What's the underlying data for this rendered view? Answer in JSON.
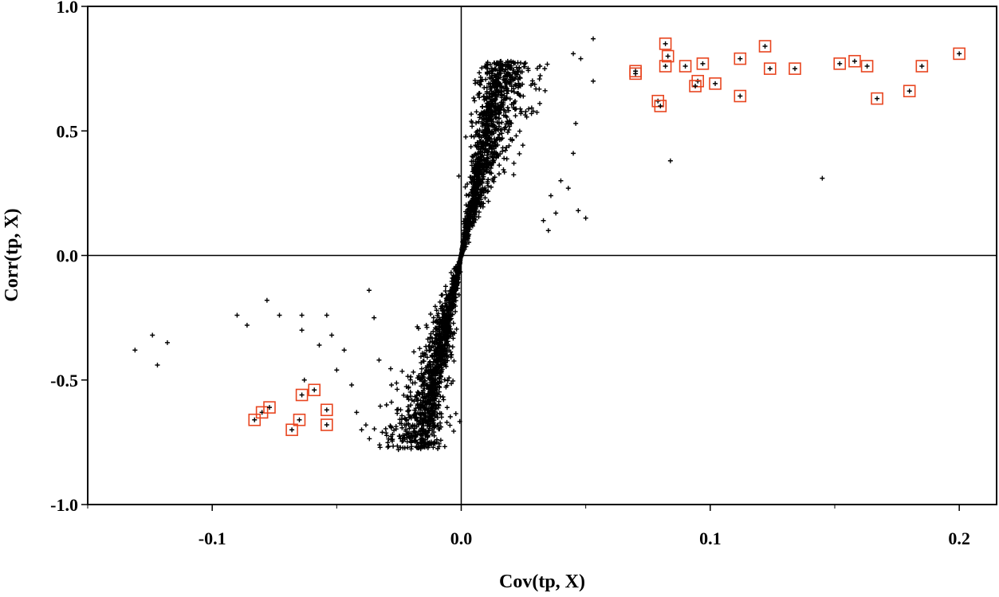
{
  "chart_data": {
    "type": "scatter",
    "title": "",
    "xlabel": "Cov(tp, X)",
    "ylabel": "Corr(tp, X)",
    "xlim": [
      -0.15,
      0.215
    ],
    "ylim": [
      -1.0,
      1.0
    ],
    "x_ticks": [
      -0.1,
      0.0,
      0.1,
      0.2
    ],
    "x_tick_labels": [
      "-0.1",
      "0.0",
      "0.1",
      "0.2"
    ],
    "y_ticks": [
      -1.0,
      -0.5,
      0.0,
      0.5,
      1.0
    ],
    "y_tick_labels": [
      "-1.0",
      "-0.5",
      "0.0",
      "0.5",
      "1.0"
    ],
    "grid": false,
    "reference_lines": {
      "x": 0.0,
      "y": 0.0
    },
    "colors": {
      "points": "#000000",
      "highlight_box": "#e8451f",
      "axes": "#000000"
    },
    "point_marker": "plus",
    "highlighted_points": [
      [
        0.07,
        0.74
      ],
      [
        0.07,
        0.73
      ],
      [
        0.082,
        0.85
      ],
      [
        0.083,
        0.8
      ],
      [
        0.082,
        0.76
      ],
      [
        0.079,
        0.62
      ],
      [
        0.08,
        0.6
      ],
      [
        0.09,
        0.76
      ],
      [
        0.097,
        0.77
      ],
      [
        0.095,
        0.7
      ],
      [
        0.094,
        0.68
      ],
      [
        0.102,
        0.69
      ],
      [
        0.112,
        0.79
      ],
      [
        0.112,
        0.64
      ],
      [
        0.122,
        0.84
      ],
      [
        0.124,
        0.75
      ],
      [
        0.134,
        0.75
      ],
      [
        0.152,
        0.77
      ],
      [
        0.158,
        0.78
      ],
      [
        0.163,
        0.76
      ],
      [
        0.167,
        0.63
      ],
      [
        0.18,
        0.66
      ],
      [
        0.185,
        0.76
      ],
      [
        0.2,
        0.81
      ],
      [
        -0.083,
        -0.66
      ],
      [
        -0.08,
        -0.63
      ],
      [
        -0.077,
        -0.61
      ],
      [
        -0.068,
        -0.7
      ],
      [
        -0.065,
        -0.66
      ],
      [
        -0.064,
        -0.56
      ],
      [
        -0.059,
        -0.54
      ],
      [
        -0.054,
        -0.62
      ],
      [
        -0.054,
        -0.68
      ]
    ],
    "outlier_points": [
      [
        -0.131,
        -0.38
      ],
      [
        -0.124,
        -0.32
      ],
      [
        -0.122,
        -0.44
      ],
      [
        -0.118,
        -0.35
      ],
      [
        -0.09,
        -0.24
      ],
      [
        -0.086,
        -0.28
      ],
      [
        -0.078,
        -0.18
      ],
      [
        -0.073,
        -0.24
      ],
      [
        -0.064,
        -0.24
      ],
      [
        -0.064,
        -0.3
      ],
      [
        -0.063,
        -0.5
      ],
      [
        -0.057,
        -0.36
      ],
      [
        -0.054,
        -0.24
      ],
      [
        -0.052,
        -0.32
      ],
      [
        -0.05,
        -0.46
      ],
      [
        -0.047,
        -0.38
      ],
      [
        -0.044,
        -0.52
      ],
      [
        -0.042,
        -0.63
      ],
      [
        -0.04,
        -0.7
      ],
      [
        -0.037,
        -0.14
      ],
      [
        -0.035,
        -0.25
      ],
      [
        -0.033,
        -0.42
      ],
      [
        -0.03,
        -0.6
      ],
      [
        -0.028,
        -0.52
      ],
      [
        0.084,
        0.38
      ],
      [
        0.145,
        0.31
      ],
      [
        0.053,
        0.87
      ],
      [
        0.053,
        0.7
      ],
      [
        0.045,
        0.81
      ],
      [
        0.048,
        0.79
      ],
      [
        0.046,
        0.53
      ],
      [
        0.045,
        0.41
      ],
      [
        0.047,
        0.18
      ],
      [
        0.05,
        0.15
      ],
      [
        0.043,
        0.27
      ],
      [
        0.04,
        0.3
      ],
      [
        0.038,
        0.17
      ],
      [
        0.036,
        0.24
      ],
      [
        0.035,
        0.1
      ],
      [
        0.033,
        0.14
      ]
    ],
    "cluster": {
      "count": 2400,
      "positive": {
        "slope": 55,
        "spread_scale": 0.0075,
        "corr_range": [
          0.0,
          0.78
        ],
        "max_cov": 0.045
      },
      "negative": {
        "slope": 55,
        "spread_scale": 0.0075,
        "corr_range": [
          -0.78,
          0.0
        ],
        "min_cov": -0.045
      }
    }
  }
}
